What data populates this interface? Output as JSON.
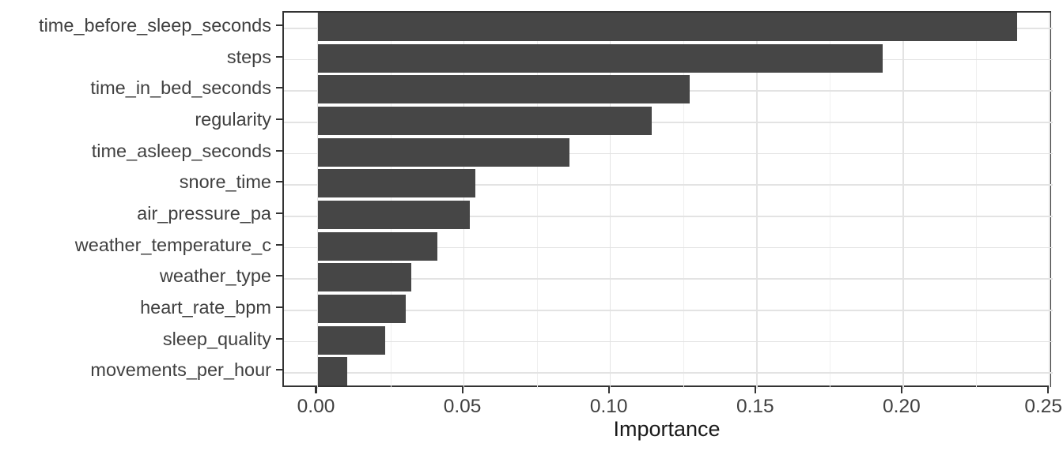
{
  "chart_data": {
    "type": "bar",
    "orientation": "horizontal",
    "title": "",
    "xlabel": "Importance",
    "ylabel": "",
    "categories": [
      "time_before_sleep_seconds",
      "steps",
      "time_in_bed_seconds",
      "regularity",
      "time_asleep_seconds",
      "snore_time",
      "air_pressure_pa",
      "weather_temperature_c",
      "weather_type",
      "heart_rate_bpm",
      "sleep_quality",
      "movements_per_hour"
    ],
    "values": [
      0.239,
      0.193,
      0.127,
      0.114,
      0.086,
      0.054,
      0.052,
      0.041,
      0.032,
      0.03,
      0.023,
      0.01
    ],
    "xlim": [
      0,
      0.25
    ],
    "x_ticks": [
      0,
      0.05,
      0.1,
      0.15,
      0.2,
      0.25
    ],
    "x_tick_labels": [
      "0.00",
      "0.05",
      "0.10",
      "0.15",
      "0.20",
      "0.25"
    ],
    "x_minor_ticks": [
      0.025,
      0.075,
      0.125,
      0.175,
      0.225
    ],
    "grid": {
      "vertical_major": true,
      "vertical_minor": true,
      "horizontal_major_at_category_centers": true
    },
    "legend": "none"
  },
  "colors": {
    "background": "#ffffff",
    "bar_fill": "#464646",
    "panel_border": "#333333",
    "grid_major": "#e3e3e3",
    "grid_minor": "#efefef",
    "tick_mark": "#333333",
    "axis_text": "#404040",
    "axis_title": "#1a1a1a"
  }
}
